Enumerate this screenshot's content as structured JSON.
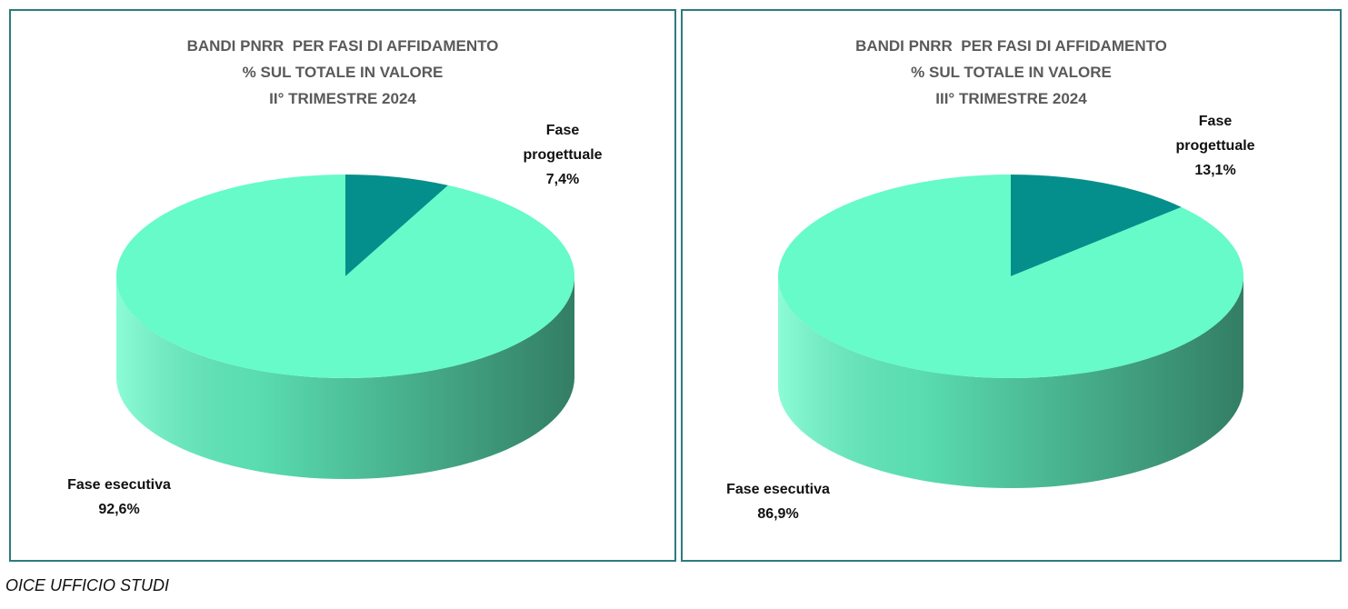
{
  "source": "OICE UFFICIO STUDI",
  "chart_data": [
    {
      "type": "pie",
      "title": [
        "BANDI PNRR  PER FASI DI AFFIDAMENTO",
        "% SUL TOTALE IN VALORE",
        "II° TRIMESTRE 2024"
      ],
      "categories": [
        "Fase progettuale",
        "Fase esecutiva"
      ],
      "values": [
        7.4,
        92.6
      ],
      "value_labels": [
        "7,4%",
        "92,6%"
      ],
      "colors": [
        "#058f8c",
        "#66fbc9"
      ]
    },
    {
      "type": "pie",
      "title": [
        "BANDI PNRR  PER FASI DI AFFIDAMENTO",
        "% SUL TOTALE IN VALORE",
        "III° TRIMESTRE 2024"
      ],
      "categories": [
        "Fase progettuale",
        "Fase esecutiva"
      ],
      "values": [
        13.1,
        86.9
      ],
      "value_labels": [
        "13,1%",
        "86,9%"
      ],
      "colors": [
        "#058f8c",
        "#66fbc9"
      ]
    }
  ]
}
